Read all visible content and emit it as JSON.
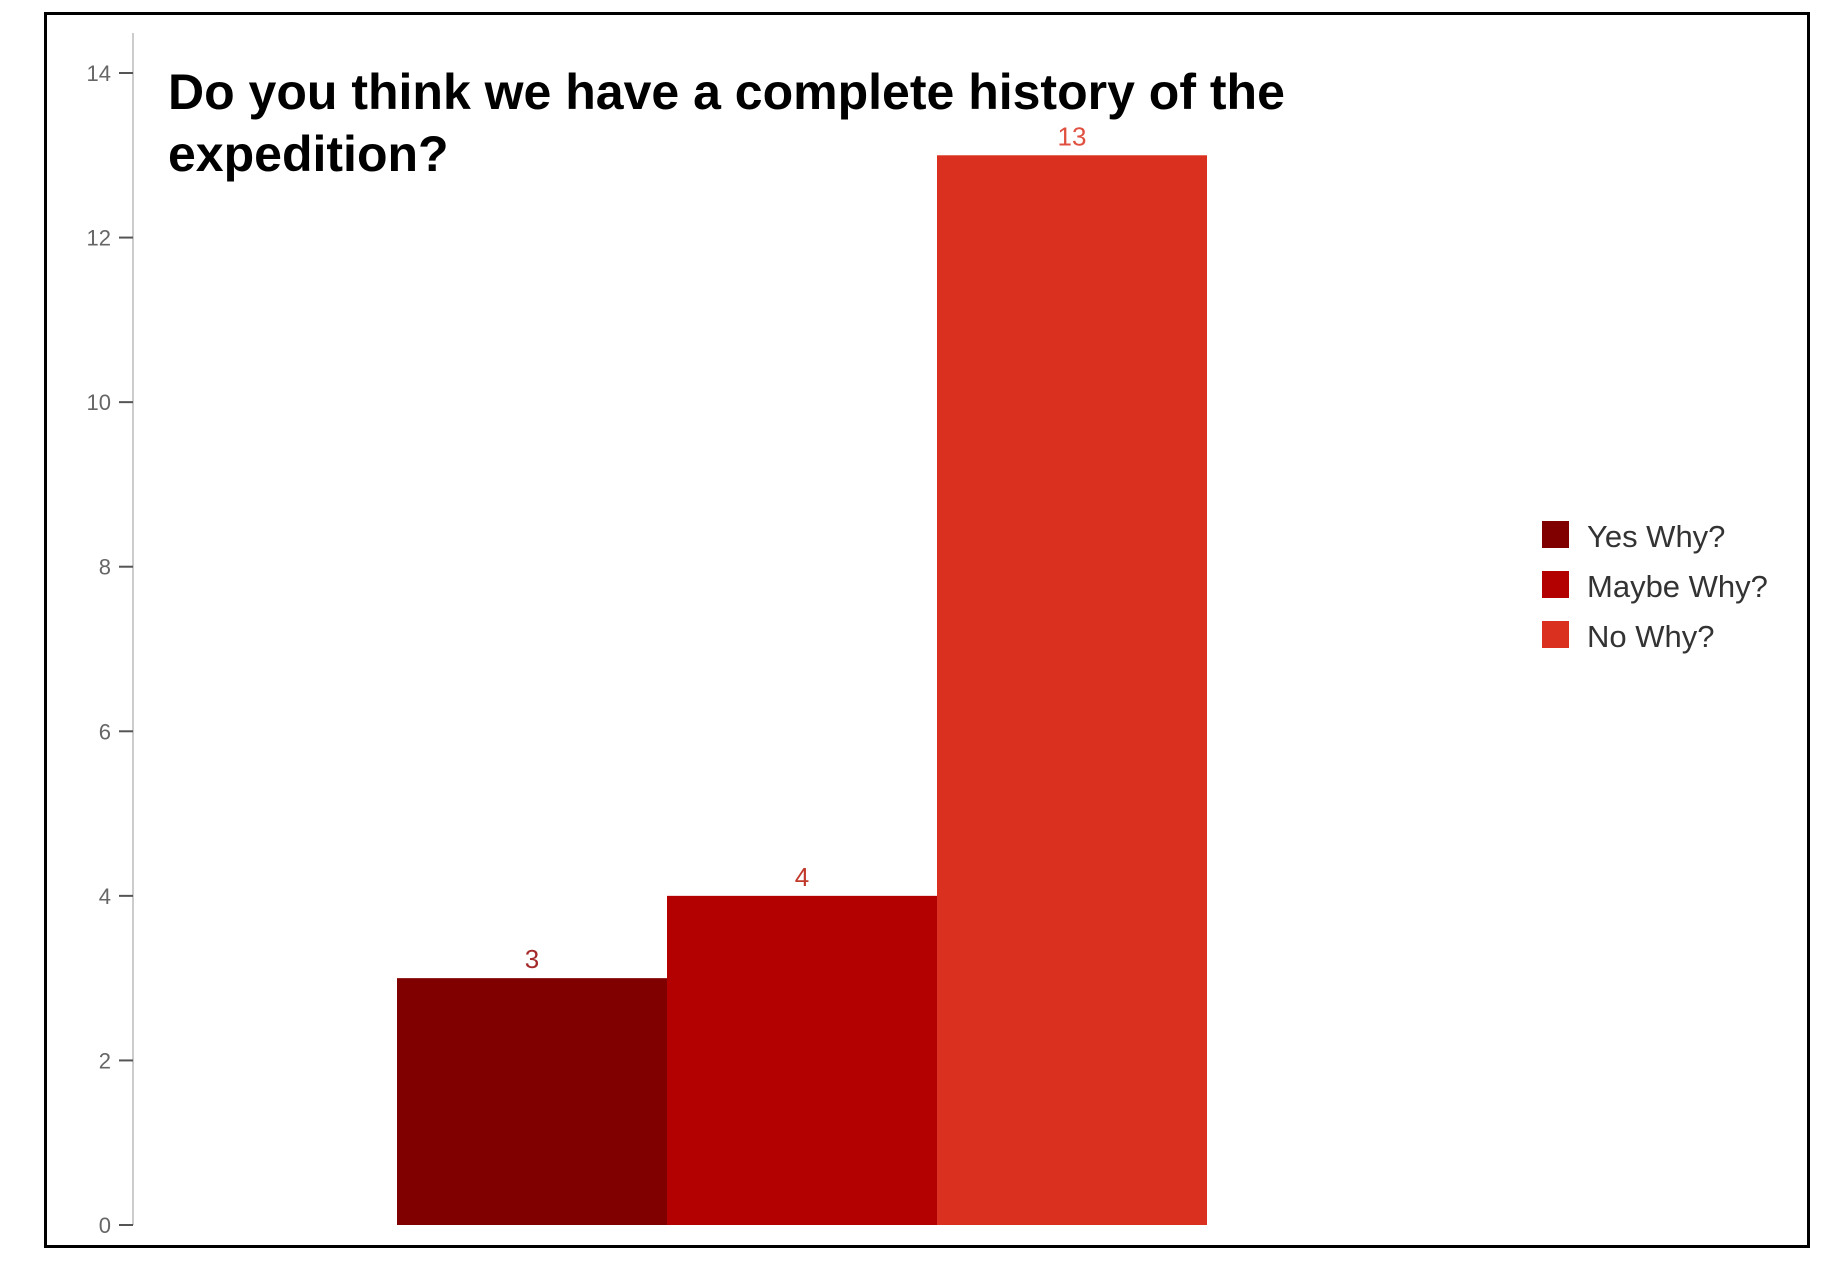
{
  "chart_data": {
    "type": "bar",
    "title": "Do you think we have a complete history of the expedition?",
    "title_lines": [
      "Do you think we have a complete history of the",
      "expedition?"
    ],
    "xlabel": "",
    "ylabel": "",
    "ylim": [
      0,
      14
    ],
    "yticks": [
      0,
      2,
      4,
      6,
      8,
      10,
      12,
      14
    ],
    "grid": false,
    "legend_position": "right",
    "series": [
      {
        "name": "Yes Why?",
        "value": 3,
        "color": "#800000",
        "label_color": "#a52a2a"
      },
      {
        "name": "Maybe Why?",
        "value": 4,
        "color": "#b30000",
        "label_color": "#c0392b"
      },
      {
        "name": "No Why?",
        "value": 13,
        "color": "#d9301f",
        "label_color": "#e05040"
      }
    ]
  }
}
